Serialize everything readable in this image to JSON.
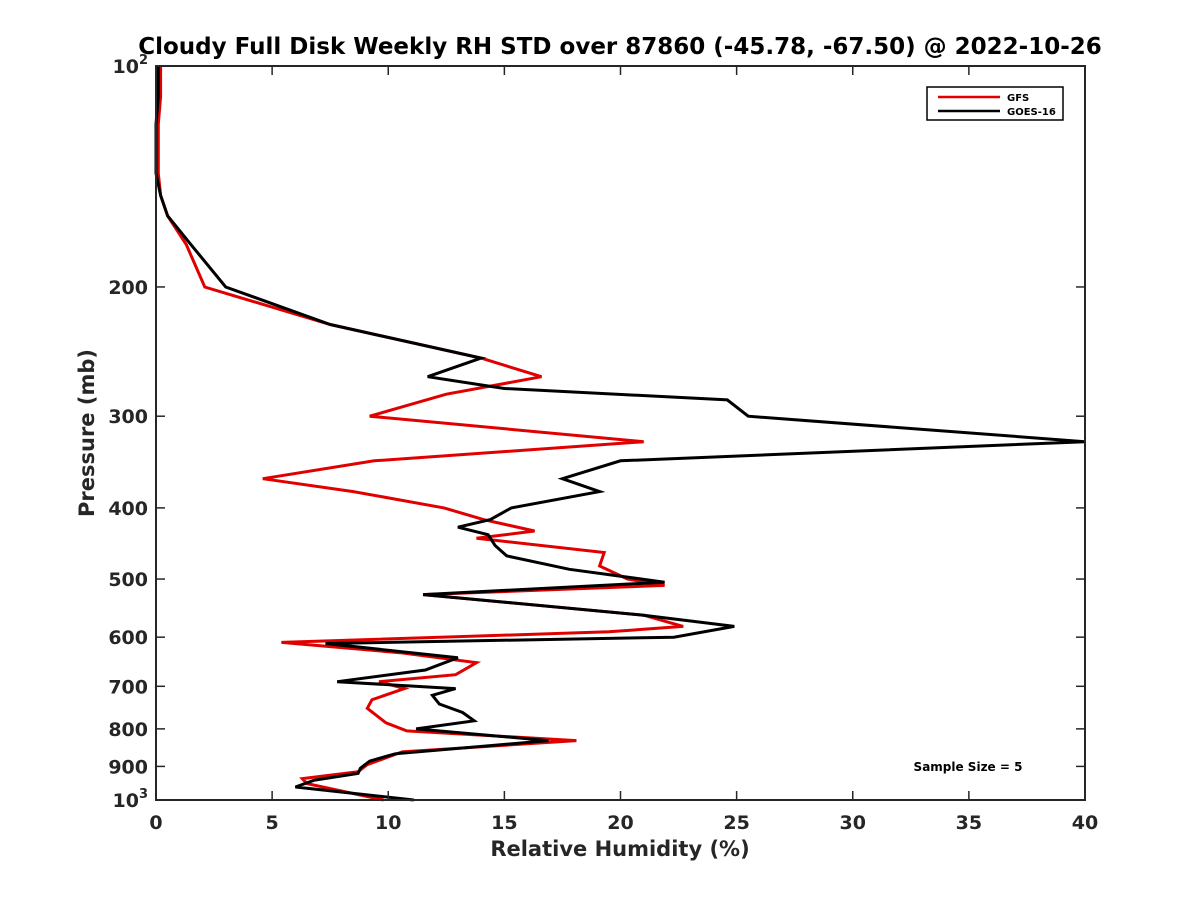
{
  "chart_data": {
    "type": "line",
    "title": "Cloudy Full Disk Weekly RH STD over 87860 (-45.78, -67.50) @ 2022-10-26",
    "xlabel": "Relative Humidity (%)",
    "ylabel": "Pressure (mb)",
    "xlim": [
      0,
      40
    ],
    "ylim": [
      100,
      1000
    ],
    "yscale": "log",
    "y_reversed": true,
    "x_ticks": [
      "0",
      "5",
      "10",
      "15",
      "20",
      "25",
      "30",
      "35",
      "40"
    ],
    "y_ticks": [
      {
        "value": 100,
        "label": "10",
        "sup": "2"
      },
      {
        "value": 200,
        "label": "200",
        "sup": ""
      },
      {
        "value": 300,
        "label": "300",
        "sup": ""
      },
      {
        "value": 400,
        "label": "400",
        "sup": ""
      },
      {
        "value": 500,
        "label": "500",
        "sup": ""
      },
      {
        "value": 600,
        "label": "600",
        "sup": ""
      },
      {
        "value": 700,
        "label": "700",
        "sup": ""
      },
      {
        "value": 800,
        "label": "800",
        "sup": ""
      },
      {
        "value": 900,
        "label": "900",
        "sup": ""
      },
      {
        "value": 1000,
        "label": "10",
        "sup": "3"
      }
    ],
    "grid": false,
    "legend_position": "top-right",
    "annotation": "Sample Size = 5",
    "series": [
      {
        "name": "GFS",
        "color": "#e00000",
        "x": [
          0.2,
          0.2,
          0.1,
          0.1,
          0.1,
          0.2,
          0.5,
          1.3,
          2.1,
          7.5,
          14.0,
          16.6,
          12.5,
          9.2,
          21.0,
          9.4,
          4.6,
          8.5,
          12.4,
          14.1,
          16.3,
          13.8,
          19.3,
          19.1,
          20.3,
          21.9,
          11.5,
          21.0,
          22.7,
          19.5,
          5.4,
          10.5,
          13.8,
          12.9,
          9.6,
          10.7,
          9.3,
          9.1,
          9.9,
          10.8,
          18.1,
          10.6,
          9.1,
          8.7,
          6.3,
          6.5,
          9.8
        ],
        "y": [
          100,
          110,
          120,
          130,
          140,
          150,
          160,
          175,
          200,
          225,
          250,
          265,
          280,
          300,
          325,
          345,
          365,
          380,
          400,
          415,
          430,
          440,
          460,
          480,
          500,
          510,
          525,
          560,
          580,
          590,
          610,
          630,
          650,
          675,
          690,
          705,
          730,
          750,
          785,
          805,
          830,
          860,
          895,
          915,
          935,
          950,
          1000
        ]
      },
      {
        "name": "GOES-16",
        "color": "#000000",
        "x": [
          0.1,
          0.1,
          0.0,
          0.0,
          0.0,
          0.2,
          0.5,
          1.5,
          3.0,
          7.5,
          14.0,
          11.7,
          15.0,
          24.6,
          25.5,
          40.0,
          20.0,
          17.5,
          19.1,
          15.3,
          14.4,
          13.0,
          14.3,
          14.6,
          15.1,
          17.8,
          21.9,
          11.5,
          21.0,
          24.9,
          22.3,
          7.3,
          13.0,
          11.6,
          7.8,
          12.9,
          11.9,
          12.2,
          13.2,
          13.7,
          11.2,
          16.9,
          10.3,
          9.2,
          8.8,
          8.7,
          6.8,
          6.0,
          11.1
        ],
        "y": [
          100,
          110,
          120,
          130,
          140,
          150,
          160,
          175,
          200,
          225,
          250,
          265,
          275,
          285,
          300,
          325,
          345,
          365,
          380,
          400,
          415,
          425,
          435,
          450,
          465,
          485,
          505,
          525,
          560,
          580,
          600,
          612,
          640,
          665,
          690,
          705,
          720,
          740,
          760,
          780,
          800,
          830,
          865,
          885,
          905,
          920,
          940,
          960,
          1000
        ]
      }
    ]
  }
}
